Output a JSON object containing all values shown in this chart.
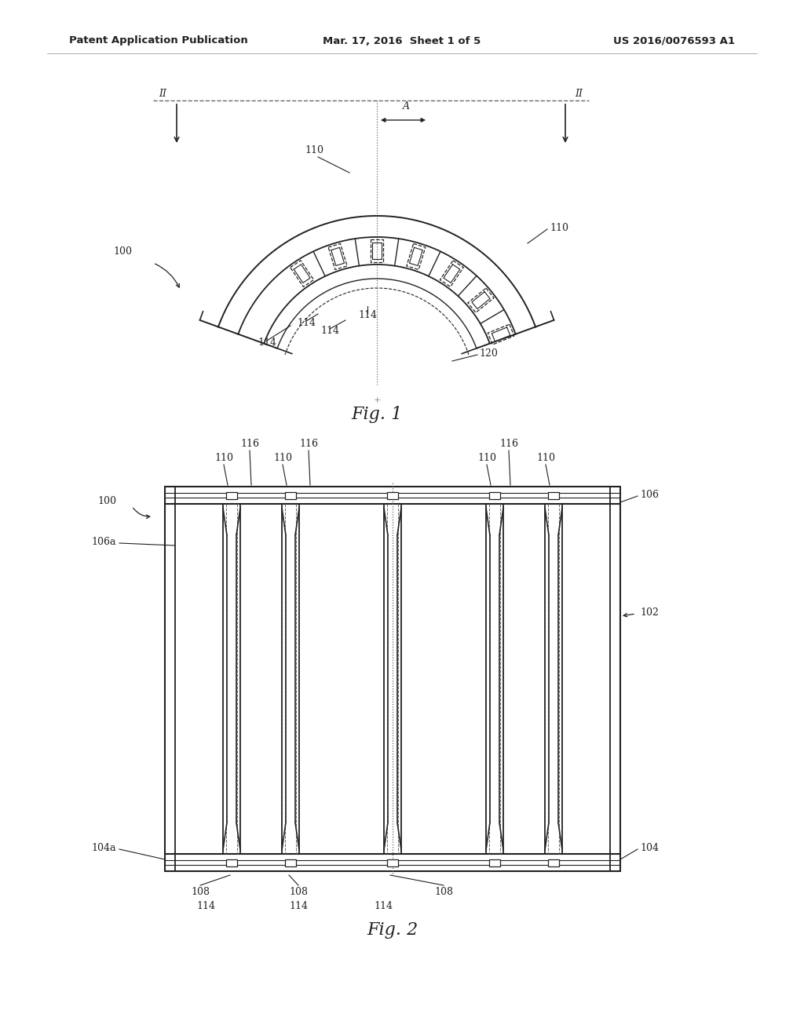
{
  "background_color": "#ffffff",
  "line_color": "#222222",
  "dashed_color": "#666666",
  "header_texts": {
    "left": "Patent Application Publication",
    "center": "Mar. 17, 2016  Sheet 1 of 5",
    "right": "US 2016/0076593 A1"
  },
  "header_font_size": 9.5,
  "fig1_label": "Fig. 1",
  "fig2_label": "Fig. 2"
}
